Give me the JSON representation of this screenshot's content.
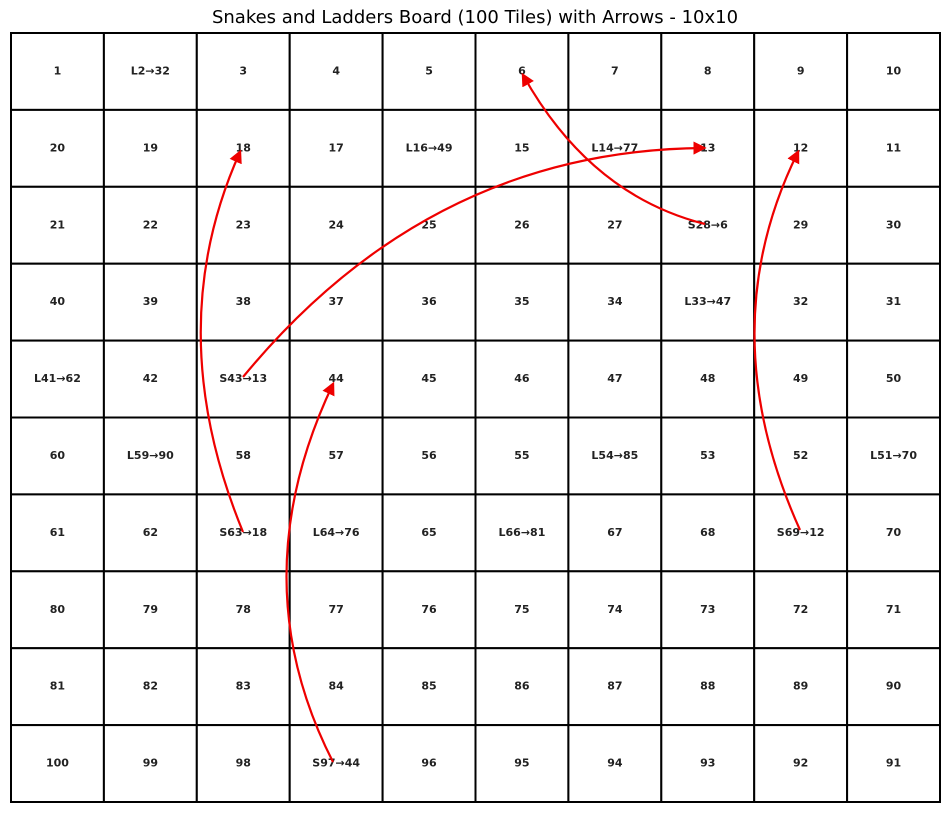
{
  "title": "Snakes and Ladders Board (100 Tiles) with Arrows - 10x10",
  "tiles": {
    "rows": [
      [
        "1",
        "L2→32",
        "3",
        "4",
        "5",
        "6",
        "7",
        "8",
        "9",
        "10"
      ],
      [
        "20",
        "19",
        "18",
        "17",
        "L16→49",
        "15",
        "L14→77",
        "13",
        "12",
        "11"
      ],
      [
        "21",
        "22",
        "23",
        "24",
        "25",
        "26",
        "27",
        "S28→6",
        "29",
        "30"
      ],
      [
        "40",
        "39",
        "38",
        "37",
        "36",
        "35",
        "34",
        "L33→47",
        "32",
        "31"
      ],
      [
        "L41→62",
        "42",
        "S43→13",
        "44",
        "45",
        "46",
        "47",
        "48",
        "49",
        "50"
      ],
      [
        "60",
        "L59→90",
        "58",
        "57",
        "56",
        "55",
        "L54→85",
        "53",
        "52",
        "L51→70"
      ],
      [
        "61",
        "62",
        "S63→18",
        "L64→76",
        "65",
        "L66→81",
        "67",
        "68",
        "S69→12",
        "70"
      ],
      [
        "80",
        "79",
        "78",
        "77",
        "76",
        "75",
        "74",
        "73",
        "72",
        "71"
      ],
      [
        "81",
        "82",
        "83",
        "84",
        "85",
        "86",
        "87",
        "88",
        "89",
        "90"
      ],
      [
        "100",
        "99",
        "98",
        "S97→44",
        "96",
        "95",
        "94",
        "93",
        "92",
        "91"
      ]
    ]
  }
}
